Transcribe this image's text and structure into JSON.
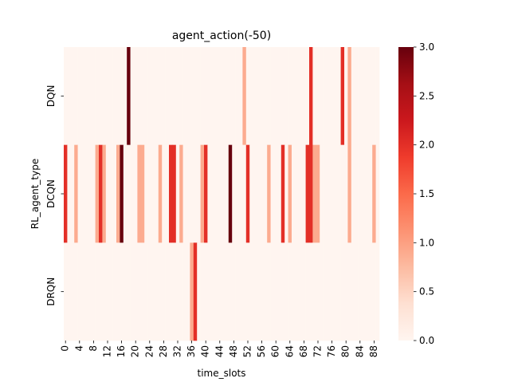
{
  "chart_data": {
    "type": "heatmap",
    "title": "agent_action(-50)",
    "xlabel": "time_slots",
    "ylabel": "RL_agent_type",
    "rows": [
      "DQN",
      "DCQN",
      "DRQN"
    ],
    "n_cols": 90,
    "x_tick_labels": [
      "0",
      "4",
      "8",
      "12",
      "16",
      "20",
      "24",
      "28",
      "32",
      "36",
      "40",
      "44",
      "48",
      "52",
      "56",
      "60",
      "64",
      "68",
      "72",
      "76",
      "80",
      "84",
      "88"
    ],
    "colorbar_ticks": [
      "0.0",
      "0.5",
      "1.0",
      "1.5",
      "2.0",
      "2.5",
      "3.0"
    ],
    "zlim": [
      0,
      3
    ],
    "colormap": "Reds",
    "cells": [
      [
        0,
        0,
        0,
        0,
        0,
        0,
        0,
        0,
        0,
        0,
        0,
        0,
        0,
        0,
        0,
        0,
        0,
        0,
        3,
        0,
        0,
        0,
        0,
        0,
        0,
        0,
        0,
        0,
        0,
        0,
        0,
        0,
        0,
        0,
        0,
        0,
        0,
        0,
        0,
        0,
        0,
        0,
        0,
        0,
        0,
        0,
        0,
        0,
        0,
        0,
        0,
        1,
        0,
        0,
        0,
        0,
        0,
        0,
        0,
        0,
        0,
        0,
        0,
        0,
        0,
        0,
        0,
        0,
        0,
        0,
        2,
        0,
        0,
        0,
        0,
        0,
        0,
        0,
        0,
        2,
        0,
        1,
        0,
        0,
        0,
        0,
        0,
        0,
        0,
        0
      ],
      [
        2,
        0,
        0,
        1,
        0,
        0,
        0,
        0,
        0,
        1,
        2,
        1,
        0,
        0,
        0,
        1,
        3,
        0,
        0,
        0,
        0,
        1,
        1,
        0,
        0,
        0,
        0,
        1,
        0,
        0,
        2,
        2,
        0,
        1,
        0,
        0,
        0,
        0,
        0,
        1,
        2,
        0,
        0,
        0,
        0,
        0,
        0,
        3,
        0,
        0,
        0,
        0,
        2,
        0,
        0,
        0,
        0,
        0,
        1,
        0,
        0,
        0,
        2,
        0,
        1,
        0,
        0,
        0,
        0,
        2,
        2,
        1,
        1,
        0,
        0,
        0,
        0,
        0,
        0,
        0,
        0,
        1,
        0,
        0,
        0,
        0,
        0,
        0,
        1,
        0
      ],
      [
        0,
        0,
        0,
        0,
        0,
        0,
        0,
        0,
        0,
        0,
        0,
        0,
        0,
        0,
        0,
        0,
        0,
        0,
        0,
        0,
        0,
        0,
        0,
        0,
        0,
        0,
        0,
        0,
        0,
        0,
        0,
        0,
        0,
        0,
        0,
        0,
        0,
        0,
        0,
        0,
        0,
        0,
        0,
        0,
        0,
        0,
        0,
        0,
        0,
        0,
        0,
        0,
        0,
        0,
        0,
        0,
        0,
        0,
        0,
        0,
        0,
        0,
        0,
        0,
        0,
        0,
        0,
        0,
        0,
        0,
        0,
        0,
        0,
        0,
        0,
        0,
        0,
        0,
        0,
        0,
        0,
        0,
        0,
        0,
        0,
        0,
        0,
        0,
        0,
        0
      ]
    ],
    "cells_patch": [
      {
        "row": 2,
        "col": 36,
        "value": 1
      },
      {
        "row": 2,
        "col": 37,
        "value": 2
      }
    ]
  }
}
